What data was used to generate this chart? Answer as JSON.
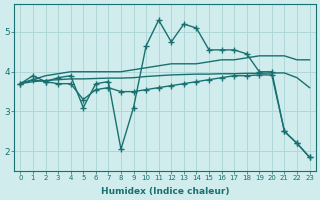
{
  "xlabel": "Humidex (Indice chaleur)",
  "x": [
    0,
    1,
    2,
    3,
    4,
    5,
    6,
    7,
    8,
    9,
    10,
    11,
    12,
    13,
    14,
    15,
    16,
    17,
    18,
    19,
    20,
    21,
    22,
    23
  ],
  "line_jagged": [
    3.7,
    3.9,
    3.75,
    3.85,
    3.9,
    3.1,
    3.7,
    3.75,
    2.05,
    3.1,
    4.65,
    5.3,
    4.75,
    5.2,
    5.1,
    4.55,
    4.55,
    4.55,
    4.45,
    4.0,
    4.0,
    2.5,
    2.2,
    1.85
  ],
  "line_straight_upper": [
    3.7,
    3.8,
    3.9,
    3.95,
    4.0,
    4.0,
    4.0,
    4.0,
    4.0,
    4.05,
    4.1,
    4.15,
    4.2,
    4.2,
    4.2,
    4.25,
    4.3,
    4.3,
    4.35,
    4.4,
    4.4,
    4.4,
    4.3,
    4.3
  ],
  "line_straight_lower": [
    3.7,
    3.75,
    3.78,
    3.8,
    3.82,
    3.82,
    3.83,
    3.84,
    3.84,
    3.85,
    3.88,
    3.9,
    3.92,
    3.93,
    3.94,
    3.94,
    3.95,
    3.95,
    3.96,
    3.96,
    3.97,
    3.97,
    3.85,
    3.6
  ],
  "line_diagonal": [
    3.7,
    3.8,
    3.75,
    3.7,
    3.7,
    3.3,
    3.55,
    3.6,
    3.5,
    3.5,
    3.55,
    3.6,
    3.65,
    3.7,
    3.75,
    3.8,
    3.85,
    3.9,
    3.9,
    3.92,
    3.92,
    2.5,
    2.2,
    1.85
  ],
  "color": "#1a7070",
  "bg_color": "#d0ecec",
  "grid_color": "#afd8d8",
  "ylim": [
    1.5,
    5.7
  ],
  "yticks": [
    2,
    3,
    4,
    5
  ],
  "xlim": [
    -0.5,
    23.5
  ]
}
